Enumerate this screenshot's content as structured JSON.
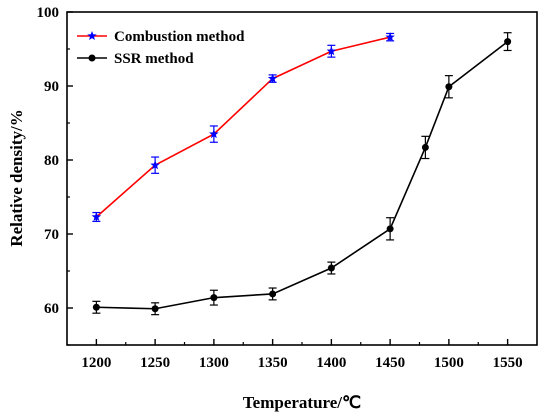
{
  "chart_data": {
    "type": "line",
    "title": "",
    "xlabel": "Temperature/℃",
    "ylabel": "Relative density/%",
    "xlim": [
      1175,
      1575
    ],
    "ylim": [
      55,
      100
    ],
    "xticks": [
      1200,
      1250,
      1300,
      1350,
      1400,
      1450,
      1500,
      1550
    ],
    "yticks": [
      60,
      70,
      80,
      90,
      100
    ],
    "grid": false,
    "legend_position": "top-left",
    "series": [
      {
        "name": "Combustion method",
        "line_color": "#ff0000",
        "marker_color": "#0000ff",
        "marker": "star",
        "x": [
          1200,
          1250,
          1300,
          1350,
          1400,
          1450
        ],
        "y": [
          72.3,
          79.3,
          83.5,
          91.0,
          94.7,
          96.6
        ],
        "err": [
          0.6,
          1.1,
          1.1,
          0.5,
          0.8,
          0.5
        ]
      },
      {
        "name": "SSR method",
        "line_color": "#000000",
        "marker_color": "#000000",
        "marker": "circle",
        "x": [
          1200,
          1250,
          1300,
          1350,
          1400,
          1450,
          1480,
          1500,
          1550
        ],
        "y": [
          60.1,
          59.9,
          61.4,
          61.9,
          65.4,
          70.7,
          81.7,
          89.9,
          96.0
        ],
        "err": [
          0.8,
          0.8,
          1.0,
          0.8,
          0.8,
          1.5,
          1.5,
          1.5,
          1.2
        ]
      }
    ]
  }
}
